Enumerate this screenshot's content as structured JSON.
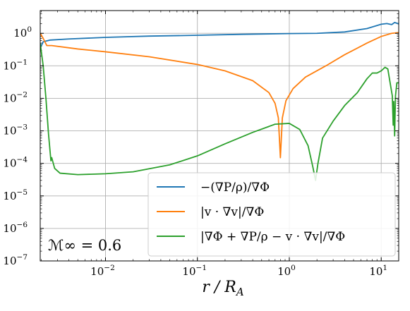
{
  "chart_data": {
    "type": "line",
    "x_scale": "log",
    "y_scale": "log",
    "xlim": [
      0.00195,
      15.5
    ],
    "ylim": [
      1e-07,
      5
    ],
    "grid": true,
    "xlabel": "r / R_A",
    "ylabel": "",
    "title": "",
    "legend_position": "bottom-right",
    "annotation": "ℳ∞ = 0.6",
    "x_ticks": [
      {
        "value": 0.01,
        "label": "10",
        "exp": "−2"
      },
      {
        "value": 0.1,
        "label": "10",
        "exp": "−1"
      },
      {
        "value": 1,
        "label": "10",
        "exp": "0"
      },
      {
        "value": 10,
        "label": "10",
        "exp": "1"
      }
    ],
    "y_ticks": [
      {
        "value": 1,
        "label": "10",
        "exp": "0"
      },
      {
        "value": 0.1,
        "label": "10",
        "exp": "−1"
      },
      {
        "value": 0.01,
        "label": "10",
        "exp": "−2"
      },
      {
        "value": 0.001,
        "label": "10",
        "exp": "−3"
      },
      {
        "value": 0.0001,
        "label": "10",
        "exp": "−4"
      },
      {
        "value": 1e-05,
        "label": "10",
        "exp": "−5"
      },
      {
        "value": 1e-06,
        "label": "10",
        "exp": "−6"
      },
      {
        "value": 1e-07,
        "label": "10",
        "exp": "−7"
      }
    ],
    "series": [
      {
        "name": "−(∇P/ρ)/∇Φ",
        "color": "#1f77b4",
        "points": [
          [
            0.00195,
            0.35
          ],
          [
            0.0021,
            0.55
          ],
          [
            0.0025,
            0.62
          ],
          [
            0.004,
            0.67
          ],
          [
            0.01,
            0.75
          ],
          [
            0.03,
            0.82
          ],
          [
            0.1,
            0.87
          ],
          [
            0.3,
            0.93
          ],
          [
            1.0,
            0.98
          ],
          [
            2.0,
            1.0
          ],
          [
            4.0,
            1.1
          ],
          [
            7.0,
            1.4
          ],
          [
            10.0,
            1.9
          ],
          [
            11.5,
            2.0
          ],
          [
            13.0,
            1.85
          ],
          [
            14.0,
            2.15
          ],
          [
            15.5,
            1.95
          ]
        ]
      },
      {
        "name": "|v · ∇v|/∇Φ",
        "color": "#ff7f0e",
        "points": [
          [
            0.00195,
            1.0
          ],
          [
            0.0021,
            0.7
          ],
          [
            0.0023,
            0.42
          ],
          [
            0.0026,
            0.42
          ],
          [
            0.005,
            0.33
          ],
          [
            0.01,
            0.27
          ],
          [
            0.03,
            0.19
          ],
          [
            0.1,
            0.11
          ],
          [
            0.2,
            0.07
          ],
          [
            0.4,
            0.035
          ],
          [
            0.6,
            0.015
          ],
          [
            0.7,
            0.007
          ],
          [
            0.76,
            0.0025
          ],
          [
            0.8,
            0.00015
          ],
          [
            0.84,
            0.0025
          ],
          [
            0.92,
            0.0085
          ],
          [
            1.1,
            0.02
          ],
          [
            1.5,
            0.045
          ],
          [
            2.5,
            0.1
          ],
          [
            4.0,
            0.22
          ],
          [
            7.0,
            0.5
          ],
          [
            10.0,
            0.8
          ],
          [
            13.0,
            1.0
          ],
          [
            15.5,
            1.05
          ]
        ]
      },
      {
        "name": "|∇Φ + ∇P/ρ − v · ∇v|/∇Φ",
        "color": "#2ca02c",
        "points": [
          [
            0.00195,
            0.5
          ],
          [
            0.0021,
            0.1
          ],
          [
            0.00225,
            0.01
          ],
          [
            0.0024,
            0.0008
          ],
          [
            0.00255,
            0.00012
          ],
          [
            0.0026,
            0.00015
          ],
          [
            0.0028,
            7e-05
          ],
          [
            0.0032,
            5e-05
          ],
          [
            0.005,
            4.5e-05
          ],
          [
            0.01,
            4.8e-05
          ],
          [
            0.02,
            5.5e-05
          ],
          [
            0.05,
            9e-05
          ],
          [
            0.1,
            0.00017
          ],
          [
            0.2,
            0.0004
          ],
          [
            0.4,
            0.0009
          ],
          [
            0.7,
            0.0016
          ],
          [
            1.0,
            0.0017
          ],
          [
            1.3,
            0.0011
          ],
          [
            1.6,
            0.00035
          ],
          [
            1.8,
            8e-05
          ],
          [
            1.93,
            3e-05
          ],
          [
            2.05,
            0.0001
          ],
          [
            2.3,
            0.0006
          ],
          [
            3.0,
            0.002
          ],
          [
            4.0,
            0.006
          ],
          [
            5.5,
            0.015
          ],
          [
            7.0,
            0.04
          ],
          [
            8.0,
            0.06
          ],
          [
            9.0,
            0.06
          ],
          [
            10.0,
            0.07
          ],
          [
            11.0,
            0.09
          ],
          [
            11.8,
            0.08
          ],
          [
            12.5,
            0.03
          ],
          [
            13.2,
            0.012
          ],
          [
            13.5,
            0.0015
          ],
          [
            13.7,
            0.008
          ],
          [
            14.0,
            0.0007
          ],
          [
            14.3,
            0.012
          ],
          [
            14.8,
            0.03
          ],
          [
            15.5,
            0.03
          ]
        ]
      }
    ]
  }
}
